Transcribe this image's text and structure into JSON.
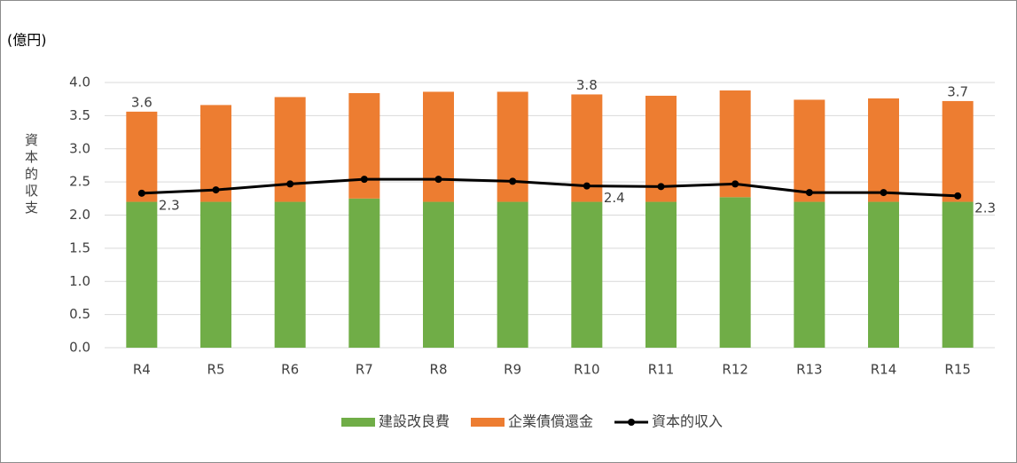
{
  "chart_data": {
    "type": "stacked-bar-line",
    "unit_label": "(億円)",
    "y_axis_label": "資本的収支",
    "categories": [
      "R4",
      "R5",
      "R6",
      "R7",
      "R8",
      "R9",
      "R10",
      "R11",
      "R12",
      "R13",
      "R14",
      "R15"
    ],
    "series": [
      {
        "name": "建設改良費",
        "color": "#70ad47",
        "kind": "bar",
        "values": [
          2.2,
          2.2,
          2.2,
          2.25,
          2.2,
          2.2,
          2.2,
          2.2,
          2.27,
          2.2,
          2.2,
          2.2
        ]
      },
      {
        "name": "企業債償還金",
        "color": "#ed7d31",
        "kind": "bar",
        "values": [
          1.36,
          1.46,
          1.58,
          1.59,
          1.66,
          1.66,
          1.62,
          1.6,
          1.61,
          1.54,
          1.56,
          1.52
        ]
      },
      {
        "name": "資本的収入",
        "color": "#000000",
        "kind": "line",
        "values": [
          2.33,
          2.38,
          2.47,
          2.54,
          2.54,
          2.51,
          2.44,
          2.43,
          2.47,
          2.34,
          2.34,
          2.29
        ],
        "value_labels": [
          "2.3",
          null,
          null,
          null,
          null,
          null,
          "2.4",
          null,
          null,
          null,
          null,
          "2.3"
        ]
      }
    ],
    "total_labels": [
      {
        "index": 0,
        "value": 3.56,
        "label": "3.6"
      },
      {
        "index": 6,
        "value": 3.82,
        "label": "3.8"
      },
      {
        "index": 11,
        "value": 3.72,
        "label": "3.7"
      }
    ],
    "ylim": [
      0,
      4.0
    ],
    "yticks": [
      {
        "value": 0,
        "label": "0.0"
      },
      0.5,
      {
        "value": 1,
        "label": "1.0"
      },
      1.5,
      {
        "value": 2,
        "label": "2.0"
      },
      2.5,
      {
        "value": 3,
        "label": "3.0"
      },
      3.5,
      {
        "value": 4,
        "label": "4.0"
      }
    ],
    "grid": true,
    "legend": "bottom"
  }
}
